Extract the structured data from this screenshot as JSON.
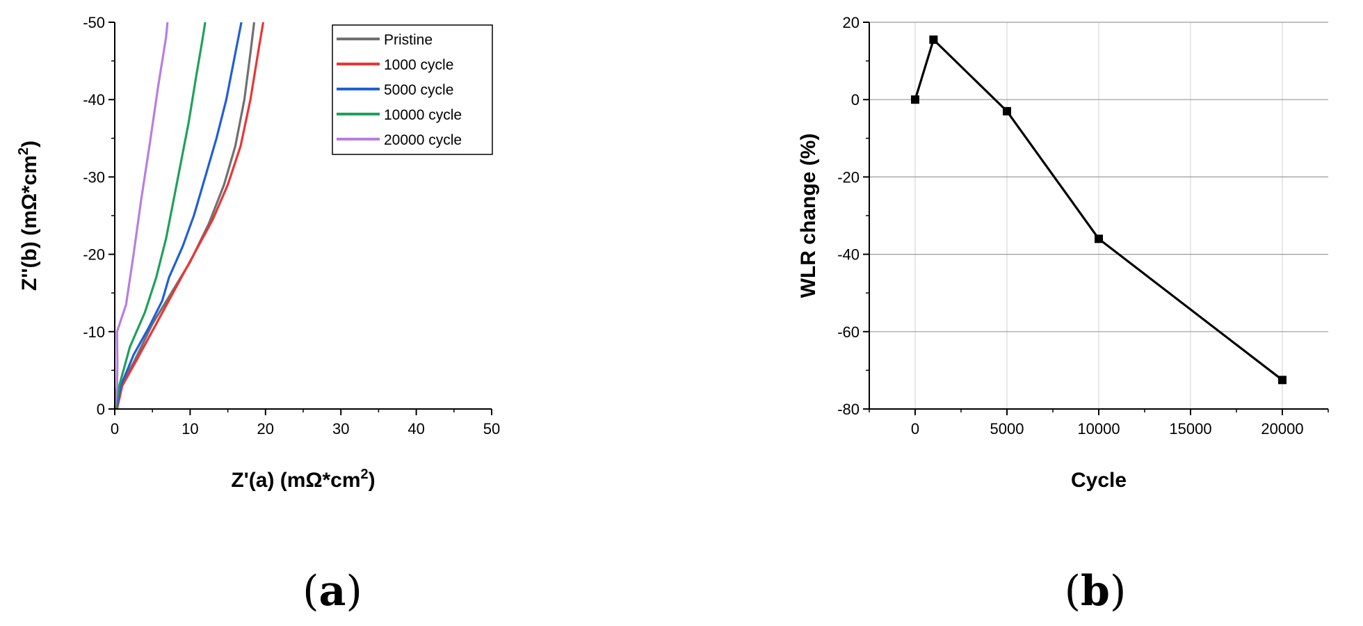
{
  "chart_data": [
    {
      "type": "line",
      "panel_label": "a",
      "xlabel": "Z'(a) (mΩ*cm",
      "xlabel_sup": "2",
      "xlabel_end": ")",
      "ylabel": "Z''(b) (mΩ*cm",
      "ylabel_sup": "2",
      "ylabel_end": ")",
      "xlim": [
        0,
        50
      ],
      "ylim": [
        0,
        -50
      ],
      "x_ticks": [
        0,
        10,
        20,
        30,
        40,
        50
      ],
      "y_ticks": [
        0,
        -10,
        -20,
        -30,
        -40,
        -50
      ],
      "x_tick_labels": [
        "0",
        "10",
        "20",
        "30",
        "40",
        "50"
      ],
      "y_tick_labels": [
        "0",
        "-10",
        "-20",
        "-30",
        "-40",
        "-50"
      ],
      "grid": false,
      "legend_position": "top-right",
      "series": [
        {
          "name": "Pristine",
          "color": "#707070",
          "points": [
            [
              0.2,
              0
            ],
            [
              0.8,
              -3
            ],
            [
              2.5,
              -6
            ],
            [
              5,
              -11
            ],
            [
              7.5,
              -15
            ],
            [
              10,
              -19
            ],
            [
              12.5,
              -24
            ],
            [
              14.5,
              -29
            ],
            [
              16,
              -34
            ],
            [
              17.2,
              -40
            ],
            [
              18,
              -46
            ],
            [
              18.5,
              -50
            ]
          ]
        },
        {
          "name": "1000 cycle",
          "color": "#ee3333",
          "points": [
            [
              0.3,
              0
            ],
            [
              1,
              -3
            ],
            [
              3,
              -6.5
            ],
            [
              5.5,
              -11
            ],
            [
              8,
              -15.5
            ],
            [
              10.5,
              -20
            ],
            [
              13,
              -24.5
            ],
            [
              15,
              -29
            ],
            [
              16.7,
              -34
            ],
            [
              18,
              -40
            ],
            [
              19,
              -46
            ],
            [
              19.7,
              -50
            ]
          ]
        },
        {
          "name": "5000 cycle",
          "color": "#1f5fd6",
          "points": [
            [
              0.2,
              0
            ],
            [
              0.8,
              -3
            ],
            [
              2.5,
              -7
            ],
            [
              4.5,
              -10.5
            ],
            [
              6.3,
              -14
            ],
            [
              7.2,
              -17
            ],
            [
              9,
              -21
            ],
            [
              10.5,
              -25
            ],
            [
              12,
              -30
            ],
            [
              13.5,
              -35
            ],
            [
              14.8,
              -40
            ],
            [
              16,
              -46
            ],
            [
              16.8,
              -50
            ]
          ]
        },
        {
          "name": "10000 cycle",
          "color": "#1fa05a",
          "points": [
            [
              0.1,
              0
            ],
            [
              0.6,
              -3
            ],
            [
              2,
              -8
            ],
            [
              4,
              -12.5
            ],
            [
              5.5,
              -17
            ],
            [
              6.8,
              -22
            ],
            [
              7.8,
              -27
            ],
            [
              8.8,
              -32
            ],
            [
              9.8,
              -37
            ],
            [
              10.8,
              -43
            ],
            [
              11.5,
              -47
            ],
            [
              12,
              -50
            ]
          ]
        },
        {
          "name": "20000 cycle",
          "color": "#b77ee0",
          "points": [
            [
              0,
              0
            ],
            [
              0.3,
              -3
            ],
            [
              0.35,
              -6
            ],
            [
              0.3,
              -10
            ],
            [
              1.5,
              -13.5
            ],
            [
              2.5,
              -20
            ],
            [
              3.5,
              -27
            ],
            [
              4.6,
              -34
            ],
            [
              5.8,
              -42
            ],
            [
              6.8,
              -48
            ],
            [
              7,
              -50
            ]
          ]
        }
      ]
    },
    {
      "type": "line",
      "panel_label": "b",
      "xlabel": "Cycle",
      "ylabel": "WLR change (%)",
      "xlim": [
        -2500,
        22500
      ],
      "ylim": [
        -80,
        20
      ],
      "x_ticks": [
        0,
        5000,
        10000,
        15000,
        20000
      ],
      "y_ticks": [
        -80,
        -60,
        -40,
        -20,
        0,
        20
      ],
      "x_tick_labels": [
        "0",
        "5000",
        "10000",
        "15000",
        "20000"
      ],
      "y_tick_labels": [
        "-80",
        "-60",
        "-40",
        "-20",
        "0",
        "20"
      ],
      "grid": true,
      "series": [
        {
          "color": "#000000",
          "marker": "square",
          "points": [
            [
              0,
              0
            ],
            [
              1000,
              15.5
            ],
            [
              5000,
              -3
            ],
            [
              10000,
              -36
            ],
            [
              20000,
              -72.5
            ]
          ]
        }
      ]
    }
  ]
}
